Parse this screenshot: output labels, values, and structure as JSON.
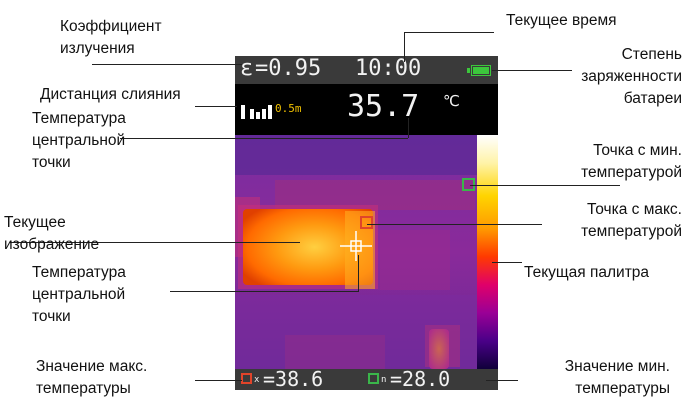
{
  "device": {
    "emissivity_label": "ε",
    "emissivity_value": "=0.95",
    "time": "10:00",
    "distance_ratio": "0.5m",
    "center_temperature": "35.7",
    "temperature_unit": "℃",
    "max_temperature": "=38.6",
    "min_temperature": "=28.0",
    "max_marker_subscript": "x",
    "min_marker_subscript": "n",
    "battery_color": "#3cc63c",
    "min_marker_color": "#3ab54a",
    "max_marker_color": "#e0442a",
    "crosshair_color": "#ffffff"
  },
  "labels": {
    "emissivity": [
      "Коэффициент",
      "излучения"
    ],
    "current_time": "Текущее время",
    "battery": [
      "Степень",
      "заряженности",
      "батареи"
    ],
    "fusion_distance": "Дистанция слияния",
    "center_temp_top": [
      "Температура",
      "центральной",
      "точки"
    ],
    "min_point": [
      "Точка с мин.",
      "температурой"
    ],
    "current_image": [
      "Текущее",
      "изображение"
    ],
    "max_point": [
      "Точка с макс.",
      "температурой"
    ],
    "center_temp_bottom": [
      "Температура",
      "центральной",
      "точки"
    ],
    "current_palette": "Текущая палитра",
    "max_value": [
      "Значение макс.",
      "температуры"
    ],
    "min_value": [
      "Значение мин.",
      "температуры"
    ]
  }
}
